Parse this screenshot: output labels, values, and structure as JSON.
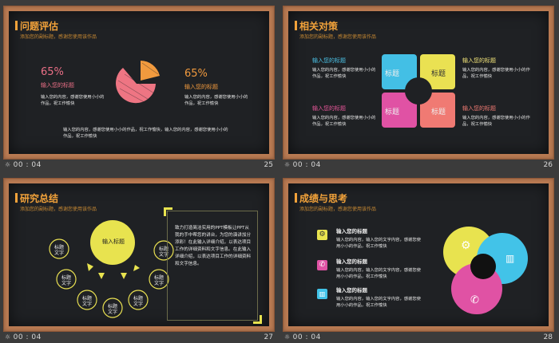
{
  "slides": [
    {
      "time": "00 : 04",
      "number": "25",
      "title": "问题评估",
      "subtitle": "添加您的副标题，感谢您使用该作品",
      "left_percent": "65%",
      "left_heading": "输入您的标题",
      "left_body": "输入您的内容，感谢您使用小小的作品，祝工作愉快",
      "right_percent": "65%",
      "right_heading": "输入您的标题",
      "right_body": "输入您的内容，感谢您使用小小的作品，祝工作愉快",
      "bottom_body": "输入您的内容，感谢您使用小小的作品，祝工作愉快，输入您的内容，感谢您使用小小的作品，祝工作愉快"
    },
    {
      "time": "00 : 04",
      "number": "26",
      "title": "相关对策",
      "subtitle": "添加您的副标题，感谢您使用该作品",
      "blocks": [
        {
          "heading": "输入您的标题",
          "body": "输入您的内容，感谢您使用小小的作品，祝工作愉快"
        },
        {
          "heading": "输入您的标题",
          "body": "输入您的内容，感谢您使用小小的作品，祝工作愉快"
        },
        {
          "heading": "输入您的标题",
          "body": "输入您的内容，感谢您使用小小的作品，祝工作愉快"
        },
        {
          "heading": "输入您的标题",
          "body": "输入您的内容，感谢您使用小小的作品，祝工作愉快"
        }
      ],
      "puzzle_labels": [
        "标题",
        "标题",
        "标题",
        "标题"
      ]
    },
    {
      "time": "00 : 04",
      "number": "27",
      "title": "研究总结",
      "subtitle": "添加您的副标题，感谢您使用该作品",
      "center_label": "输入标题",
      "node_label": "标题文字",
      "quote_text": "致力打造简洁实用的PPT模板让PPT从我的手中帮您的讲台，为您的演讲加分添彩！在此输入详细介绍，以表达项目工作的详细资料和文字信息。在此输入详细介绍，以表达项目工作的详细资料和文字信息。"
    },
    {
      "time": "00 : 04",
      "number": "28",
      "title": "成绩与思考",
      "subtitle": "添加您的副标题，感谢您使用该作品",
      "items": [
        {
          "heading": "输入您的标题",
          "body": "输入您的内容，输入您的文字内容，感谢您使用小小的作品，祝工作愉快"
        },
        {
          "heading": "输入您的标题",
          "body": "输入您的内容，输入您的文字内容，感谢您使用小小的作品，祝工作愉快"
        },
        {
          "heading": "输入您的标题",
          "body": "输入您的内容，输入您的文字内容，感谢您使用小小的作品，祝工作愉快"
        }
      ]
    }
  ],
  "colors": {
    "yellow": "#efe85a",
    "pink": "#e64d8c",
    "cyan": "#42c3e8",
    "salmon": "#f0707a",
    "orange": "#f2a23a"
  }
}
